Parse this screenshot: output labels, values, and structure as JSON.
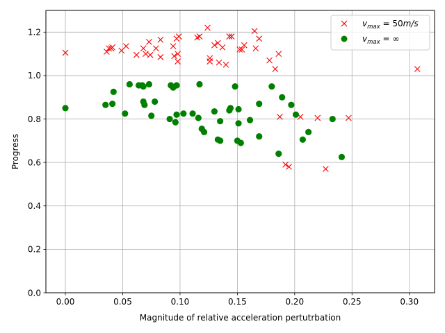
{
  "chart_data": {
    "type": "scatter",
    "xlabel": "Magnitude of relative acceleration pertutrbation",
    "ylabel": "Progress",
    "xlim": [
      -0.017,
      0.322
    ],
    "ylim": [
      0.0,
      1.3
    ],
    "xticks": [
      "0.00",
      "0.05",
      "0.10",
      "0.15",
      "0.20",
      "0.25",
      "0.30"
    ],
    "yticks": [
      "0.0",
      "0.2",
      "0.4",
      "0.6",
      "0.8",
      "1.0",
      "1.2"
    ],
    "grid": true,
    "legend_placement": "top-right",
    "series": [
      {
        "name": "v_max = 50m/s",
        "marker": "x",
        "color": "#ff0000",
        "points": [
          [
            0.0,
            1.105
          ],
          [
            0.036,
            1.11
          ],
          [
            0.038,
            1.125
          ],
          [
            0.04,
            1.125
          ],
          [
            0.041,
            1.13
          ],
          [
            0.049,
            1.115
          ],
          [
            0.053,
            1.135
          ],
          [
            0.062,
            1.095
          ],
          [
            0.068,
            1.125
          ],
          [
            0.07,
            1.1
          ],
          [
            0.073,
            1.155
          ],
          [
            0.074,
            1.095
          ],
          [
            0.079,
            1.125
          ],
          [
            0.083,
            1.165
          ],
          [
            0.083,
            1.085
          ],
          [
            0.094,
            1.135
          ],
          [
            0.095,
            1.09
          ],
          [
            0.097,
            1.17
          ],
          [
            0.098,
            1.1
          ],
          [
            0.098,
            1.065
          ],
          [
            0.099,
            1.18
          ],
          [
            0.115,
            1.175
          ],
          [
            0.117,
            1.18
          ],
          [
            0.124,
            1.22
          ],
          [
            0.126,
            1.08
          ],
          [
            0.126,
            1.065
          ],
          [
            0.13,
            1.14
          ],
          [
            0.133,
            1.15
          ],
          [
            0.134,
            1.06
          ],
          [
            0.137,
            1.13
          ],
          [
            0.14,
            1.05
          ],
          [
            0.143,
            1.18
          ],
          [
            0.145,
            1.18
          ],
          [
            0.152,
            1.12
          ],
          [
            0.154,
            1.12
          ],
          [
            0.156,
            1.14
          ],
          [
            0.165,
            1.205
          ],
          [
            0.166,
            1.125
          ],
          [
            0.169,
            1.17
          ],
          [
            0.178,
            1.07
          ],
          [
            0.183,
            1.03
          ],
          [
            0.186,
            1.1
          ],
          [
            0.187,
            0.81
          ],
          [
            0.192,
            0.59
          ],
          [
            0.195,
            0.58
          ],
          [
            0.205,
            0.81
          ],
          [
            0.22,
            0.805
          ],
          [
            0.227,
            0.57
          ],
          [
            0.247,
            0.805
          ],
          [
            0.307,
            1.03
          ]
        ]
      },
      {
        "name": "v_max = ∞",
        "marker": "o",
        "color": "#008000",
        "points": [
          [
            0.0,
            0.85
          ],
          [
            0.035,
            0.865
          ],
          [
            0.041,
            0.87
          ],
          [
            0.042,
            0.925
          ],
          [
            0.052,
            0.825
          ],
          [
            0.056,
            0.96
          ],
          [
            0.064,
            0.955
          ],
          [
            0.067,
            0.955
          ],
          [
            0.068,
            0.95
          ],
          [
            0.068,
            0.88
          ],
          [
            0.069,
            0.865
          ],
          [
            0.073,
            0.96
          ],
          [
            0.075,
            0.815
          ],
          [
            0.078,
            0.88
          ],
          [
            0.091,
            0.8
          ],
          [
            0.092,
            0.955
          ],
          [
            0.094,
            0.945
          ],
          [
            0.096,
            0.785
          ],
          [
            0.097,
            0.955
          ],
          [
            0.097,
            0.82
          ],
          [
            0.103,
            0.825
          ],
          [
            0.111,
            0.825
          ],
          [
            0.116,
            0.805
          ],
          [
            0.117,
            0.96
          ],
          [
            0.119,
            0.755
          ],
          [
            0.121,
            0.74
          ],
          [
            0.13,
            0.835
          ],
          [
            0.133,
            0.705
          ],
          [
            0.135,
            0.7
          ],
          [
            0.135,
            0.79
          ],
          [
            0.143,
            0.84
          ],
          [
            0.144,
            0.85
          ],
          [
            0.148,
            0.95
          ],
          [
            0.15,
            0.7
          ],
          [
            0.151,
            0.845
          ],
          [
            0.151,
            0.78
          ],
          [
            0.153,
            0.69
          ],
          [
            0.161,
            0.795
          ],
          [
            0.169,
            0.87
          ],
          [
            0.169,
            0.72
          ],
          [
            0.18,
            0.95
          ],
          [
            0.186,
            0.64
          ],
          [
            0.189,
            0.9
          ],
          [
            0.197,
            0.865
          ],
          [
            0.201,
            0.82
          ],
          [
            0.207,
            0.705
          ],
          [
            0.212,
            0.74
          ],
          [
            0.233,
            0.8
          ],
          [
            0.241,
            0.625
          ]
        ]
      }
    ]
  }
}
